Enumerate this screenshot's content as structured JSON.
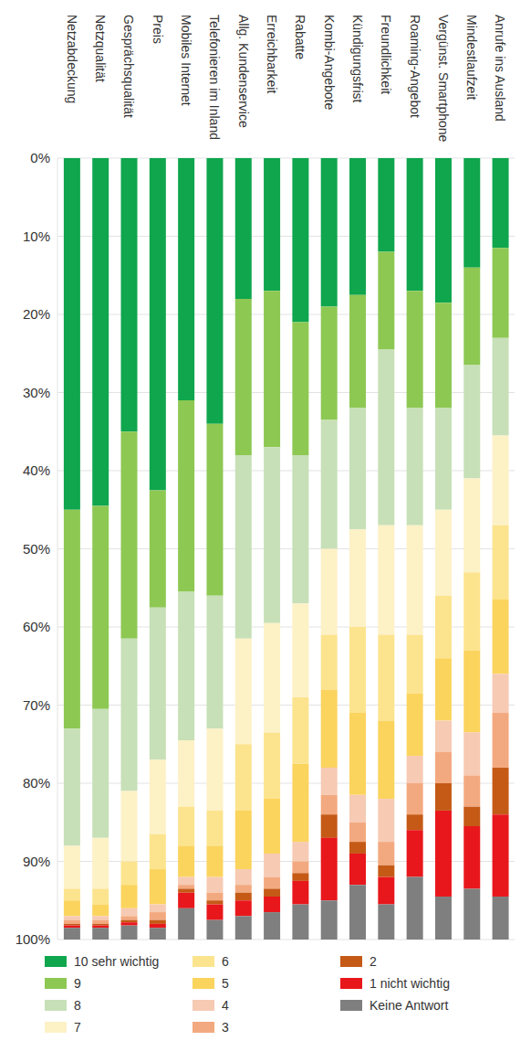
{
  "chart_data": {
    "type": "bar",
    "stacked": true,
    "grid": true,
    "legend": "bottom",
    "categories": [
      "Netzabdeckung",
      "Netzqualität",
      "Gesprächsqualität",
      "Preis",
      "Mobiles Internet",
      "Telefonieren im Inland",
      "Allg. Kundenservice",
      "Erreichbarkeit",
      "Rabatte",
      "Kombi-Angebote",
      "Kündigungsfrist",
      "Freundlichkeit",
      "Roaming-Angebot",
      "Vergünst. Smartphone",
      "Mindestlaufzeit",
      "Anrufe ins Ausland"
    ],
    "ylim": [
      0,
      100
    ],
    "yticks": [
      {
        "value": 0,
        "label": "0%"
      },
      {
        "value": 10,
        "label": "10%"
      },
      {
        "value": 20,
        "label": "20%"
      },
      {
        "value": 30,
        "label": "30%"
      },
      {
        "value": 40,
        "label": "40%"
      },
      {
        "value": 50,
        "label": "50%"
      },
      {
        "value": 60,
        "label": "60%"
      },
      {
        "value": 70,
        "label": "70%"
      },
      {
        "value": 80,
        "label": "80%"
      },
      {
        "value": 90,
        "label": "90%"
      },
      {
        "value": 100,
        "label": "100%"
      }
    ],
    "series": [
      {
        "name": "10 sehr wichtig",
        "color": "#0fa64d",
        "values": [
          45,
          44.5,
          35,
          42.5,
          31,
          34,
          18,
          17,
          21,
          19,
          17.5,
          12,
          17,
          18.5,
          14,
          11.5
        ]
      },
      {
        "name": "9",
        "color": "#8dc853",
        "values": [
          28,
          26,
          26.5,
          15,
          24.5,
          22,
          20,
          20,
          17,
          14.5,
          14.5,
          12.5,
          15,
          13.5,
          12.5,
          11.5
        ]
      },
      {
        "name": "8",
        "color": "#c7e0b7",
        "values": [
          15,
          16.5,
          19.5,
          19.5,
          19,
          17,
          23.5,
          22.5,
          19,
          16.5,
          15.5,
          22.5,
          15,
          13,
          14.5,
          12.5
        ]
      },
      {
        "name": "7",
        "color": "#fdf1c6",
        "values": [
          5.5,
          6.5,
          9,
          9.5,
          8.5,
          10.5,
          13.5,
          14,
          12,
          11,
          12.5,
          14,
          14,
          11,
          12,
          11.5
        ]
      },
      {
        "name": "6",
        "color": "#fce48e",
        "values": [
          1.5,
          2,
          3,
          4.5,
          5,
          4.5,
          8.5,
          8.5,
          8.5,
          7,
          11,
          11,
          7.5,
          8,
          10,
          9.5
        ]
      },
      {
        "name": "5",
        "color": "#fbd45e",
        "values": [
          2,
          1.5,
          3,
          4.5,
          4,
          4,
          7.5,
          7,
          10,
          10,
          10.5,
          10,
          8,
          8,
          10.5,
          9.5
        ]
      },
      {
        "name": "4",
        "color": "#f6cab3",
        "values": [
          0.5,
          0.5,
          1,
          1,
          1,
          2,
          2,
          3,
          2.5,
          3.5,
          3.5,
          5.5,
          3.5,
          4,
          5.5,
          5
        ]
      },
      {
        "name": "3",
        "color": "#f3a97f",
        "values": [
          0.5,
          0.5,
          0.5,
          1,
          0.5,
          1,
          1,
          1.5,
          1.5,
          2.5,
          2.5,
          3,
          4,
          4,
          4,
          7
        ]
      },
      {
        "name": "2",
        "color": "#c55a16",
        "values": [
          0.2,
          0.2,
          0.3,
          0.5,
          0.5,
          0.5,
          1,
          1,
          1,
          3,
          1.5,
          1.5,
          2,
          3.5,
          2.5,
          6
        ]
      },
      {
        "name": "1 nicht wichtig",
        "color": "#e8171c",
        "values": [
          0.3,
          0.3,
          0.4,
          0.5,
          2,
          2,
          2,
          2,
          3,
          8,
          4,
          3.5,
          6,
          11,
          8,
          10.5
        ]
      },
      {
        "name": "Keine Antwort",
        "color": "#7f7f7f",
        "values": [
          1.5,
          1.5,
          1.8,
          1.5,
          4,
          2.5,
          3,
          3.5,
          4.5,
          5,
          7,
          4.5,
          8,
          5.5,
          6.5,
          5.5
        ]
      }
    ]
  }
}
